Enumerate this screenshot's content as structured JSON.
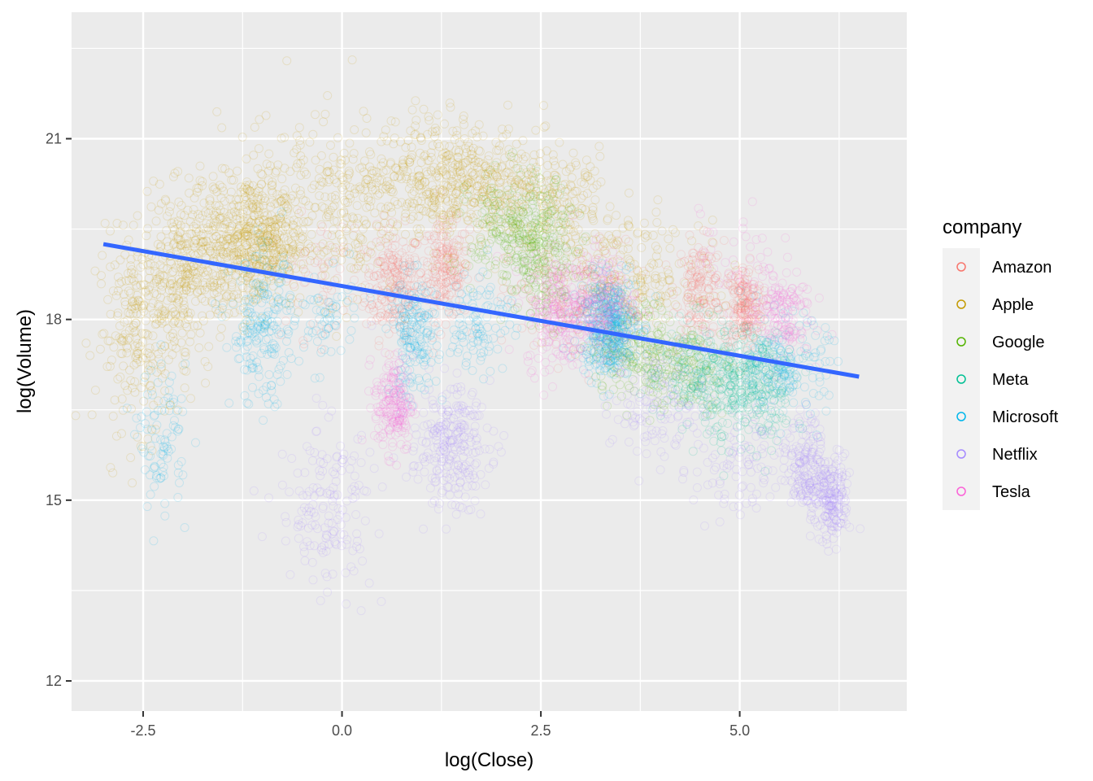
{
  "chart_data": {
    "type": "scatter",
    "xlabel": "log(Close)",
    "ylabel": "log(Volume)",
    "xlim": [
      -3.4,
      7.1
    ],
    "ylim": [
      11.5,
      23.1
    ],
    "x_ticks": [
      -2.5,
      0.0,
      2.5,
      5.0
    ],
    "x_tick_labels": [
      "-2.5",
      "0.0",
      "2.5",
      "5.0"
    ],
    "y_ticks": [
      12,
      15,
      18,
      21
    ],
    "y_tick_labels": [
      "12",
      "15",
      "18",
      "21"
    ],
    "grid": true,
    "legend": {
      "title": "company",
      "placement": "right",
      "entries": [
        {
          "label": "Amazon",
          "color": "#F8766D"
        },
        {
          "label": "Apple",
          "color": "#C49A00"
        },
        {
          "label": "Google",
          "color": "#53B400"
        },
        {
          "label": "Meta",
          "color": "#00C094"
        },
        {
          "label": "Microsoft",
          "color": "#00B6EB"
        },
        {
          "label": "Netflix",
          "color": "#A58AFF"
        },
        {
          "label": "Tesla",
          "color": "#FB61D7"
        }
      ]
    },
    "series": [
      {
        "name": "Amazon",
        "color": "#F8766D",
        "clusters": [
          {
            "x": 0.65,
            "y": 18.6,
            "sx": 0.18,
            "sy": 0.45,
            "n": 220
          },
          {
            "x": 1.3,
            "y": 18.8,
            "sx": 0.15,
            "sy": 0.4,
            "n": 200
          },
          {
            "x": 4.5,
            "y": 18.5,
            "sx": 0.15,
            "sy": 0.4,
            "n": 160
          },
          {
            "x": 5.05,
            "y": 18.2,
            "sx": 0.12,
            "sy": 0.35,
            "n": 200
          },
          {
            "x": 2.9,
            "y": 18.3,
            "sx": 0.4,
            "sy": 0.5,
            "n": 150
          },
          {
            "x": -0.3,
            "y": 18.7,
            "sx": 0.3,
            "sy": 0.5,
            "n": 60
          }
        ]
      },
      {
        "name": "Apple",
        "color": "#C49A00",
        "clusters": [
          {
            "x": -2.5,
            "y": 17.8,
            "sx": 0.3,
            "sy": 0.8,
            "n": 260
          },
          {
            "x": -2.0,
            "y": 18.8,
            "sx": 0.25,
            "sy": 0.6,
            "n": 200
          },
          {
            "x": -1.05,
            "y": 19.3,
            "sx": 0.3,
            "sy": 0.55,
            "n": 460
          },
          {
            "x": -1.6,
            "y": 19.2,
            "sx": 0.35,
            "sy": 0.6,
            "n": 200
          },
          {
            "x": 0.0,
            "y": 19.8,
            "sx": 0.35,
            "sy": 0.7,
            "n": 180
          },
          {
            "x": 1.1,
            "y": 20.4,
            "sx": 0.4,
            "sy": 0.5,
            "n": 280
          },
          {
            "x": 1.8,
            "y": 20.2,
            "sx": 0.35,
            "sy": 0.5,
            "n": 240
          },
          {
            "x": 2.7,
            "y": 19.9,
            "sx": 0.4,
            "sy": 0.5,
            "n": 200
          },
          {
            "x": 3.6,
            "y": 18.6,
            "sx": 0.45,
            "sy": 0.5,
            "n": 220
          },
          {
            "x": -0.7,
            "y": 20.3,
            "sx": 0.5,
            "sy": 0.6,
            "n": 80
          }
        ]
      },
      {
        "name": "Google",
        "color": "#53B400",
        "clusters": [
          {
            "x": 2.1,
            "y": 19.4,
            "sx": 0.25,
            "sy": 0.5,
            "n": 200
          },
          {
            "x": 2.55,
            "y": 19.1,
            "sx": 0.2,
            "sy": 0.55,
            "n": 200
          },
          {
            "x": 3.8,
            "y": 17.5,
            "sx": 0.35,
            "sy": 0.4,
            "n": 200
          },
          {
            "x": 4.3,
            "y": 17.2,
            "sx": 0.3,
            "sy": 0.35,
            "n": 120
          }
        ]
      },
      {
        "name": "Meta",
        "color": "#00C094",
        "clusters": [
          {
            "x": 4.9,
            "y": 16.9,
            "sx": 0.3,
            "sy": 0.45,
            "n": 240
          },
          {
            "x": 5.3,
            "y": 17.0,
            "sx": 0.25,
            "sy": 0.45,
            "n": 160
          },
          {
            "x": 4.4,
            "y": 17.1,
            "sx": 0.3,
            "sy": 0.4,
            "n": 120
          }
        ]
      },
      {
        "name": "Microsoft",
        "color": "#00B6EB",
        "clusters": [
          {
            "x": -2.25,
            "y": 16.0,
            "sx": 0.15,
            "sy": 0.6,
            "n": 90
          },
          {
            "x": -1.0,
            "y": 17.8,
            "sx": 0.2,
            "sy": 0.6,
            "n": 200
          },
          {
            "x": 0.9,
            "y": 17.7,
            "sx": 0.15,
            "sy": 0.5,
            "n": 180
          },
          {
            "x": 1.75,
            "y": 18.0,
            "sx": 0.2,
            "sy": 0.45,
            "n": 100
          },
          {
            "x": 3.35,
            "y": 17.9,
            "sx": 0.18,
            "sy": 0.4,
            "n": 450
          },
          {
            "x": 5.6,
            "y": 17.2,
            "sx": 0.25,
            "sy": 0.4,
            "n": 160
          },
          {
            "x": -0.2,
            "y": 18.0,
            "sx": 0.2,
            "sy": 0.4,
            "n": 60
          }
        ]
      },
      {
        "name": "Netflix",
        "color": "#A58AFF",
        "clusters": [
          {
            "x": -0.2,
            "y": 14.9,
            "sx": 0.3,
            "sy": 0.7,
            "n": 160
          },
          {
            "x": 1.35,
            "y": 15.9,
            "sx": 0.25,
            "sy": 0.5,
            "n": 260
          },
          {
            "x": 4.0,
            "y": 16.6,
            "sx": 0.3,
            "sy": 0.5,
            "n": 120
          },
          {
            "x": 5.85,
            "y": 15.6,
            "sx": 0.12,
            "sy": 0.4,
            "n": 160
          },
          {
            "x": 6.15,
            "y": 15.0,
            "sx": 0.12,
            "sy": 0.35,
            "n": 200
          },
          {
            "x": 5.0,
            "y": 15.5,
            "sx": 0.3,
            "sy": 0.5,
            "n": 100
          }
        ]
      },
      {
        "name": "Tesla",
        "color": "#FB61D7",
        "clusters": [
          {
            "x": 0.65,
            "y": 16.6,
            "sx": 0.12,
            "sy": 0.4,
            "n": 200
          },
          {
            "x": 2.8,
            "y": 18.1,
            "sx": 0.25,
            "sy": 0.45,
            "n": 260
          },
          {
            "x": 3.3,
            "y": 18.3,
            "sx": 0.2,
            "sy": 0.4,
            "n": 150
          },
          {
            "x": 5.5,
            "y": 18.1,
            "sx": 0.2,
            "sy": 0.35,
            "n": 160
          },
          {
            "x": 5.0,
            "y": 19.0,
            "sx": 0.25,
            "sy": 0.4,
            "n": 40
          }
        ]
      }
    ],
    "trend_line": {
      "color": "#3366FF",
      "x": [
        -3.0,
        6.5
      ],
      "y": [
        19.25,
        17.05
      ]
    }
  }
}
